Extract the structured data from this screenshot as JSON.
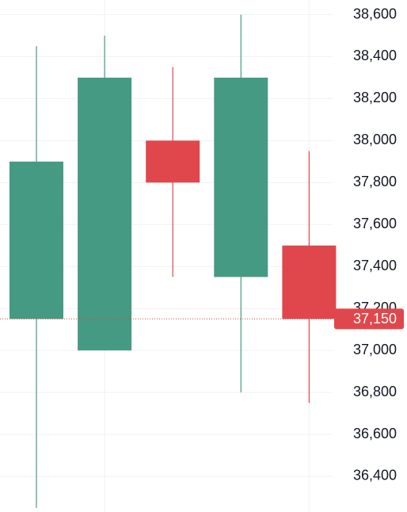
{
  "chart_data": {
    "type": "candlestick",
    "categories": [
      null,
      null,
      null,
      null,
      null
    ],
    "open": [
      37150,
      37000,
      38000,
      37350,
      37500
    ],
    "high": [
      38450,
      38500,
      38350,
      38600,
      37950
    ],
    "low": [
      36250,
      37000,
      37350,
      36800,
      36750
    ],
    "close": [
      37900,
      38300,
      37800,
      38300,
      37150
    ],
    "up_color": "#459a83",
    "down_color": "#e0474c",
    "ylim": [
      36230,
      38670
    ],
    "yticks": [
      {
        "value": 36400,
        "label": "36,400"
      },
      {
        "value": 36600,
        "label": "36,600"
      },
      {
        "value": 36800,
        "label": "36,800"
      },
      {
        "value": 37000,
        "label": "37,000"
      },
      {
        "value": 37200,
        "label": "37,200"
      },
      {
        "value": 37400,
        "label": "37,400"
      },
      {
        "value": 37600,
        "label": "37,600"
      },
      {
        "value": 37800,
        "label": "37,800"
      },
      {
        "value": 38000,
        "label": "38,000"
      },
      {
        "value": 38200,
        "label": "38,200"
      },
      {
        "value": 38400,
        "label": "38,400"
      },
      {
        "value": 38600,
        "label": "38,600"
      }
    ],
    "last_price": {
      "value": 37150,
      "label": "37,150"
    },
    "grid": true
  }
}
